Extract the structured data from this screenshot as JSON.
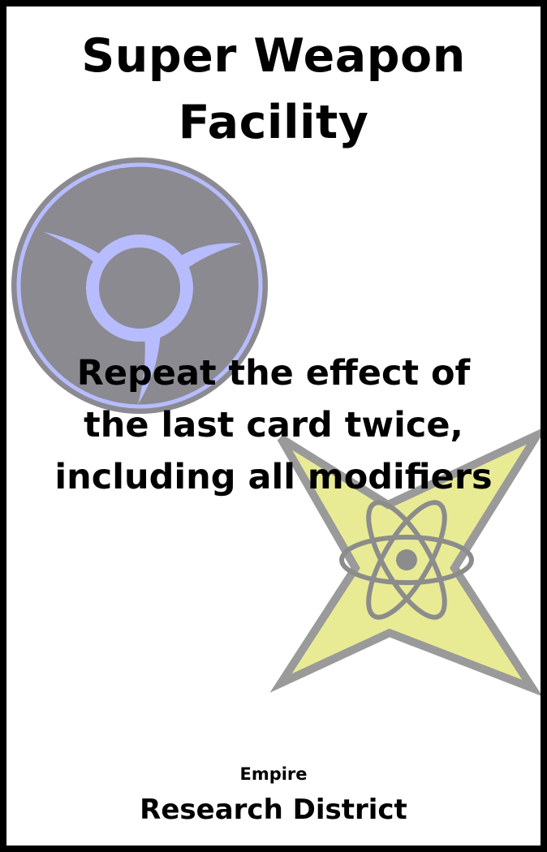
{
  "card": {
    "title_lines": [
      "Super Weapon",
      "Facility"
    ],
    "effect_lines": [
      "Repeat the effect of",
      "the last card twice,",
      "including all modifiers"
    ],
    "faction": "Empire",
    "district": "Research District"
  },
  "icons": {
    "faction_emblem": "empire-emblem-icon",
    "district_emblem": "atom-star-icon"
  },
  "colors": {
    "border": "#000000",
    "background": "#ffffff",
    "emblem_circle": "#8a8a90",
    "emblem_ring": "#b7bcff",
    "star_fill": "#e8eb94",
    "star_stroke": "#9a9a9a"
  }
}
